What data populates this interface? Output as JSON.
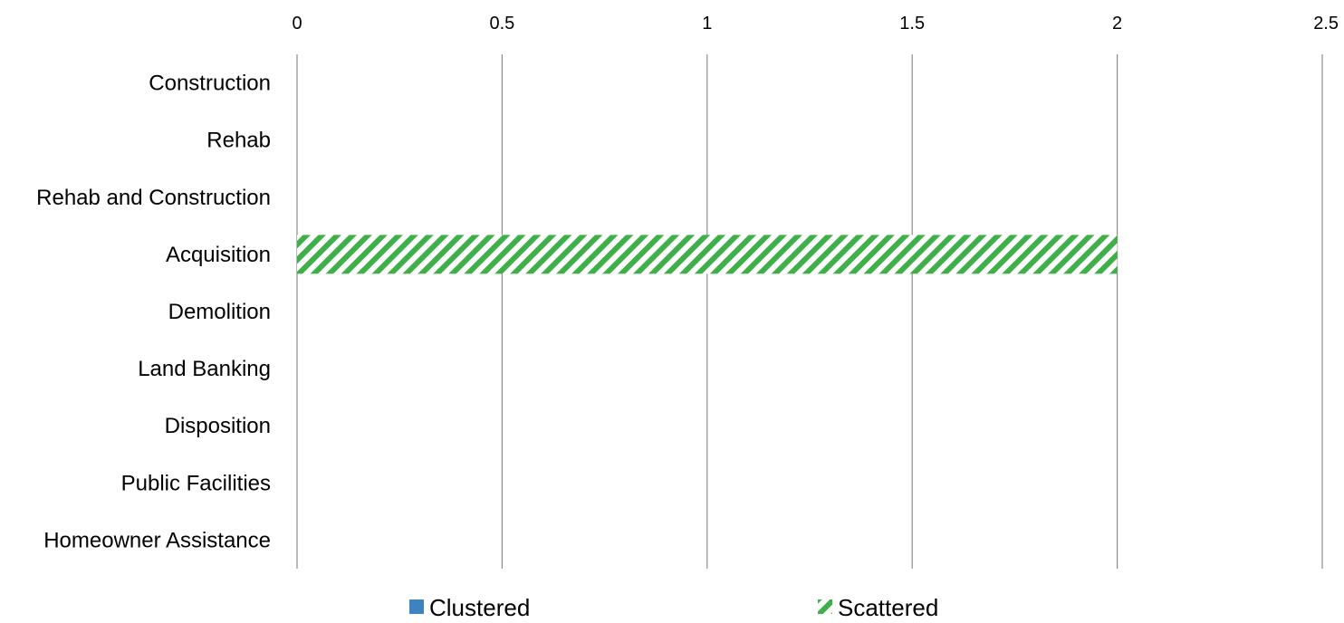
{
  "chart_data": {
    "type": "bar",
    "orientation": "horizontal",
    "stacked": true,
    "categories": [
      "Construction",
      "Rehab",
      "Rehab and Construction",
      "Acquisition",
      "Demolition",
      "Land Banking",
      "Disposition",
      "Public Facilities",
      "Homeowner Assistance"
    ],
    "series": [
      {
        "name": "Clustered",
        "values": [
          0,
          0,
          0,
          0,
          0,
          0,
          0,
          0,
          0
        ],
        "color": "#3b84c0",
        "pattern": "solid"
      },
      {
        "name": "Scattered",
        "values": [
          0,
          0,
          0,
          2,
          0,
          0,
          0,
          0,
          0
        ],
        "color": "#3fb049",
        "pattern": "diagonal-stripes"
      }
    ],
    "xlim": [
      0,
      2.5
    ],
    "xticks": [
      "0",
      "0.5",
      "1",
      "1.5",
      "2",
      "2.5"
    ],
    "x_axis_position": "top",
    "grid": true,
    "legend_position": "bottom"
  }
}
